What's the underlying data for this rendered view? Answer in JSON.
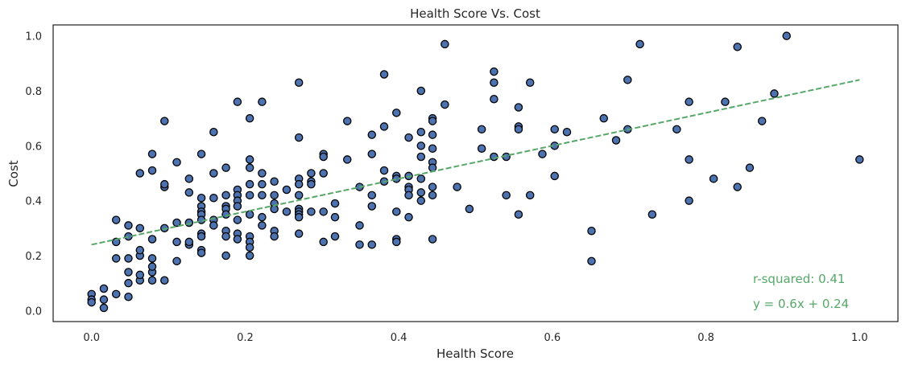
{
  "chart_data": {
    "type": "scatter",
    "title": "Health Score Vs. Cost",
    "xlabel": "Health Score",
    "ylabel": "Cost",
    "xlim": [
      -0.05,
      1.05
    ],
    "ylim": [
      -0.04,
      1.04
    ],
    "xticks": [
      "0.0",
      "0.2",
      "0.4",
      "0.6",
      "0.8",
      "1.0"
    ],
    "yticks": [
      "0.0",
      "0.2",
      "0.4",
      "0.6",
      "0.8",
      "1.0"
    ],
    "grid": false,
    "point_color": "#4c72b0",
    "point_edge_color": "#000000",
    "fit_line": {
      "slope": 0.6,
      "intercept": 0.24,
      "color": "#55a868",
      "x_range": [
        0.0,
        1.0
      ],
      "style": "dashed"
    },
    "annotations": {
      "r_squared": "r-squared: 0.41",
      "equation": "y = 0.6x + 0.24"
    },
    "points": [
      [
        0.0,
        0.06
      ],
      [
        0.0,
        0.04
      ],
      [
        0.0,
        0.03
      ],
      [
        0.016,
        0.08
      ],
      [
        0.016,
        0.04
      ],
      [
        0.016,
        0.01
      ],
      [
        0.032,
        0.06
      ],
      [
        0.032,
        0.25
      ],
      [
        0.032,
        0.33
      ],
      [
        0.032,
        0.19
      ],
      [
        0.048,
        0.14
      ],
      [
        0.048,
        0.1
      ],
      [
        0.048,
        0.05
      ],
      [
        0.048,
        0.19
      ],
      [
        0.048,
        0.27
      ],
      [
        0.048,
        0.31
      ],
      [
        0.063,
        0.11
      ],
      [
        0.063,
        0.13
      ],
      [
        0.063,
        0.2
      ],
      [
        0.063,
        0.22
      ],
      [
        0.063,
        0.3
      ],
      [
        0.063,
        0.5
      ],
      [
        0.079,
        0.11
      ],
      [
        0.079,
        0.14
      ],
      [
        0.079,
        0.16
      ],
      [
        0.079,
        0.19
      ],
      [
        0.079,
        0.26
      ],
      [
        0.079,
        0.51
      ],
      [
        0.079,
        0.57
      ],
      [
        0.095,
        0.69
      ],
      [
        0.095,
        0.45
      ],
      [
        0.095,
        0.46
      ],
      [
        0.095,
        0.3
      ],
      [
        0.095,
        0.11
      ],
      [
        0.111,
        0.54
      ],
      [
        0.111,
        0.32
      ],
      [
        0.111,
        0.25
      ],
      [
        0.111,
        0.18
      ],
      [
        0.127,
        0.48
      ],
      [
        0.127,
        0.43
      ],
      [
        0.127,
        0.32
      ],
      [
        0.127,
        0.24
      ],
      [
        0.127,
        0.25
      ],
      [
        0.143,
        0.57
      ],
      [
        0.143,
        0.41
      ],
      [
        0.143,
        0.38
      ],
      [
        0.143,
        0.36
      ],
      [
        0.143,
        0.35
      ],
      [
        0.143,
        0.33
      ],
      [
        0.143,
        0.28
      ],
      [
        0.143,
        0.27
      ],
      [
        0.143,
        0.22
      ],
      [
        0.143,
        0.21
      ],
      [
        0.159,
        0.65
      ],
      [
        0.159,
        0.5
      ],
      [
        0.159,
        0.41
      ],
      [
        0.159,
        0.33
      ],
      [
        0.159,
        0.31
      ],
      [
        0.175,
        0.52
      ],
      [
        0.175,
        0.42
      ],
      [
        0.175,
        0.38
      ],
      [
        0.175,
        0.37
      ],
      [
        0.175,
        0.35
      ],
      [
        0.175,
        0.29
      ],
      [
        0.175,
        0.27
      ],
      [
        0.175,
        0.2
      ],
      [
        0.19,
        0.76
      ],
      [
        0.19,
        0.44
      ],
      [
        0.19,
        0.42
      ],
      [
        0.19,
        0.4
      ],
      [
        0.19,
        0.38
      ],
      [
        0.19,
        0.33
      ],
      [
        0.19,
        0.28
      ],
      [
        0.19,
        0.26
      ],
      [
        0.206,
        0.7
      ],
      [
        0.206,
        0.55
      ],
      [
        0.206,
        0.52
      ],
      [
        0.206,
        0.46
      ],
      [
        0.206,
        0.42
      ],
      [
        0.206,
        0.35
      ],
      [
        0.206,
        0.27
      ],
      [
        0.206,
        0.25
      ],
      [
        0.206,
        0.23
      ],
      [
        0.206,
        0.2
      ],
      [
        0.222,
        0.76
      ],
      [
        0.222,
        0.5
      ],
      [
        0.222,
        0.46
      ],
      [
        0.222,
        0.42
      ],
      [
        0.222,
        0.34
      ],
      [
        0.222,
        0.31
      ],
      [
        0.238,
        0.47
      ],
      [
        0.238,
        0.42
      ],
      [
        0.238,
        0.39
      ],
      [
        0.238,
        0.37
      ],
      [
        0.238,
        0.29
      ],
      [
        0.238,
        0.27
      ],
      [
        0.254,
        0.44
      ],
      [
        0.254,
        0.36
      ],
      [
        0.27,
        0.83
      ],
      [
        0.27,
        0.63
      ],
      [
        0.27,
        0.48
      ],
      [
        0.27,
        0.46
      ],
      [
        0.27,
        0.42
      ],
      [
        0.27,
        0.37
      ],
      [
        0.27,
        0.36
      ],
      [
        0.27,
        0.35
      ],
      [
        0.27,
        0.34
      ],
      [
        0.27,
        0.28
      ],
      [
        0.286,
        0.5
      ],
      [
        0.286,
        0.47
      ],
      [
        0.286,
        0.46
      ],
      [
        0.286,
        0.36
      ],
      [
        0.302,
        0.57
      ],
      [
        0.302,
        0.56
      ],
      [
        0.302,
        0.5
      ],
      [
        0.302,
        0.36
      ],
      [
        0.302,
        0.25
      ],
      [
        0.317,
        0.39
      ],
      [
        0.317,
        0.34
      ],
      [
        0.317,
        0.27
      ],
      [
        0.333,
        0.69
      ],
      [
        0.333,
        0.55
      ],
      [
        0.349,
        0.45
      ],
      [
        0.349,
        0.31
      ],
      [
        0.349,
        0.24
      ],
      [
        0.365,
        0.64
      ],
      [
        0.365,
        0.57
      ],
      [
        0.365,
        0.42
      ],
      [
        0.365,
        0.38
      ],
      [
        0.365,
        0.24
      ],
      [
        0.381,
        0.86
      ],
      [
        0.381,
        0.67
      ],
      [
        0.381,
        0.51
      ],
      [
        0.381,
        0.47
      ],
      [
        0.397,
        0.72
      ],
      [
        0.397,
        0.49
      ],
      [
        0.397,
        0.48
      ],
      [
        0.397,
        0.36
      ],
      [
        0.397,
        0.26
      ],
      [
        0.397,
        0.25
      ],
      [
        0.413,
        0.63
      ],
      [
        0.413,
        0.49
      ],
      [
        0.413,
        0.45
      ],
      [
        0.413,
        0.44
      ],
      [
        0.413,
        0.42
      ],
      [
        0.413,
        0.34
      ],
      [
        0.429,
        0.8
      ],
      [
        0.429,
        0.65
      ],
      [
        0.429,
        0.6
      ],
      [
        0.429,
        0.56
      ],
      [
        0.429,
        0.48
      ],
      [
        0.429,
        0.43
      ],
      [
        0.429,
        0.4
      ],
      [
        0.444,
        0.7
      ],
      [
        0.444,
        0.69
      ],
      [
        0.444,
        0.64
      ],
      [
        0.444,
        0.59
      ],
      [
        0.444,
        0.54
      ],
      [
        0.444,
        0.52
      ],
      [
        0.444,
        0.45
      ],
      [
        0.444,
        0.42
      ],
      [
        0.444,
        0.26
      ],
      [
        0.46,
        0.97
      ],
      [
        0.46,
        0.75
      ],
      [
        0.476,
        0.45
      ],
      [
        0.492,
        0.37
      ],
      [
        0.508,
        0.66
      ],
      [
        0.508,
        0.59
      ],
      [
        0.524,
        0.87
      ],
      [
        0.524,
        0.83
      ],
      [
        0.524,
        0.77
      ],
      [
        0.524,
        0.56
      ],
      [
        0.54,
        0.56
      ],
      [
        0.54,
        0.42
      ],
      [
        0.556,
        0.74
      ],
      [
        0.556,
        0.67
      ],
      [
        0.556,
        0.66
      ],
      [
        0.556,
        0.35
      ],
      [
        0.571,
        0.83
      ],
      [
        0.571,
        0.42
      ],
      [
        0.587,
        0.57
      ],
      [
        0.603,
        0.66
      ],
      [
        0.603,
        0.6
      ],
      [
        0.603,
        0.49
      ],
      [
        0.619,
        0.65
      ],
      [
        0.651,
        0.29
      ],
      [
        0.651,
        0.18
      ],
      [
        0.667,
        0.7
      ],
      [
        0.683,
        0.62
      ],
      [
        0.698,
        0.84
      ],
      [
        0.698,
        0.66
      ],
      [
        0.714,
        0.97
      ],
      [
        0.73,
        0.35
      ],
      [
        0.762,
        0.66
      ],
      [
        0.778,
        0.76
      ],
      [
        0.778,
        0.55
      ],
      [
        0.778,
        0.4
      ],
      [
        0.81,
        0.48
      ],
      [
        0.825,
        0.76
      ],
      [
        0.841,
        0.96
      ],
      [
        0.841,
        0.45
      ],
      [
        0.857,
        0.52
      ],
      [
        0.873,
        0.69
      ],
      [
        0.889,
        0.79
      ],
      [
        0.905,
        1.0
      ],
      [
        1.0,
        0.55
      ]
    ]
  }
}
